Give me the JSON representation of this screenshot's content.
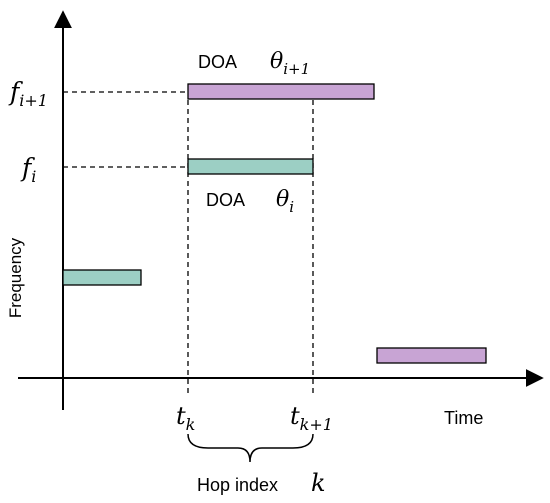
{
  "axes": {
    "x_label": "Time",
    "y_label": "Frequency"
  },
  "labels": {
    "f_next_main": "f",
    "f_next_sub": "i+1",
    "f_cur_main": "f",
    "f_cur_sub": "i",
    "doa_next_word": "DOA",
    "doa_next_theta": "θ",
    "doa_next_sub": "i+1",
    "doa_cur_word": "DOA",
    "doa_cur_theta": "θ",
    "doa_cur_sub": "i",
    "tk_main": "t",
    "tk_sub": "k",
    "tk1_main": "t",
    "tk1_sub": "k+1",
    "hop_text": "Hop index",
    "hop_var": "k"
  },
  "colors": {
    "teal": "#9ccfc4",
    "purple": "#c8a4d4",
    "stroke": "#000000"
  }
}
